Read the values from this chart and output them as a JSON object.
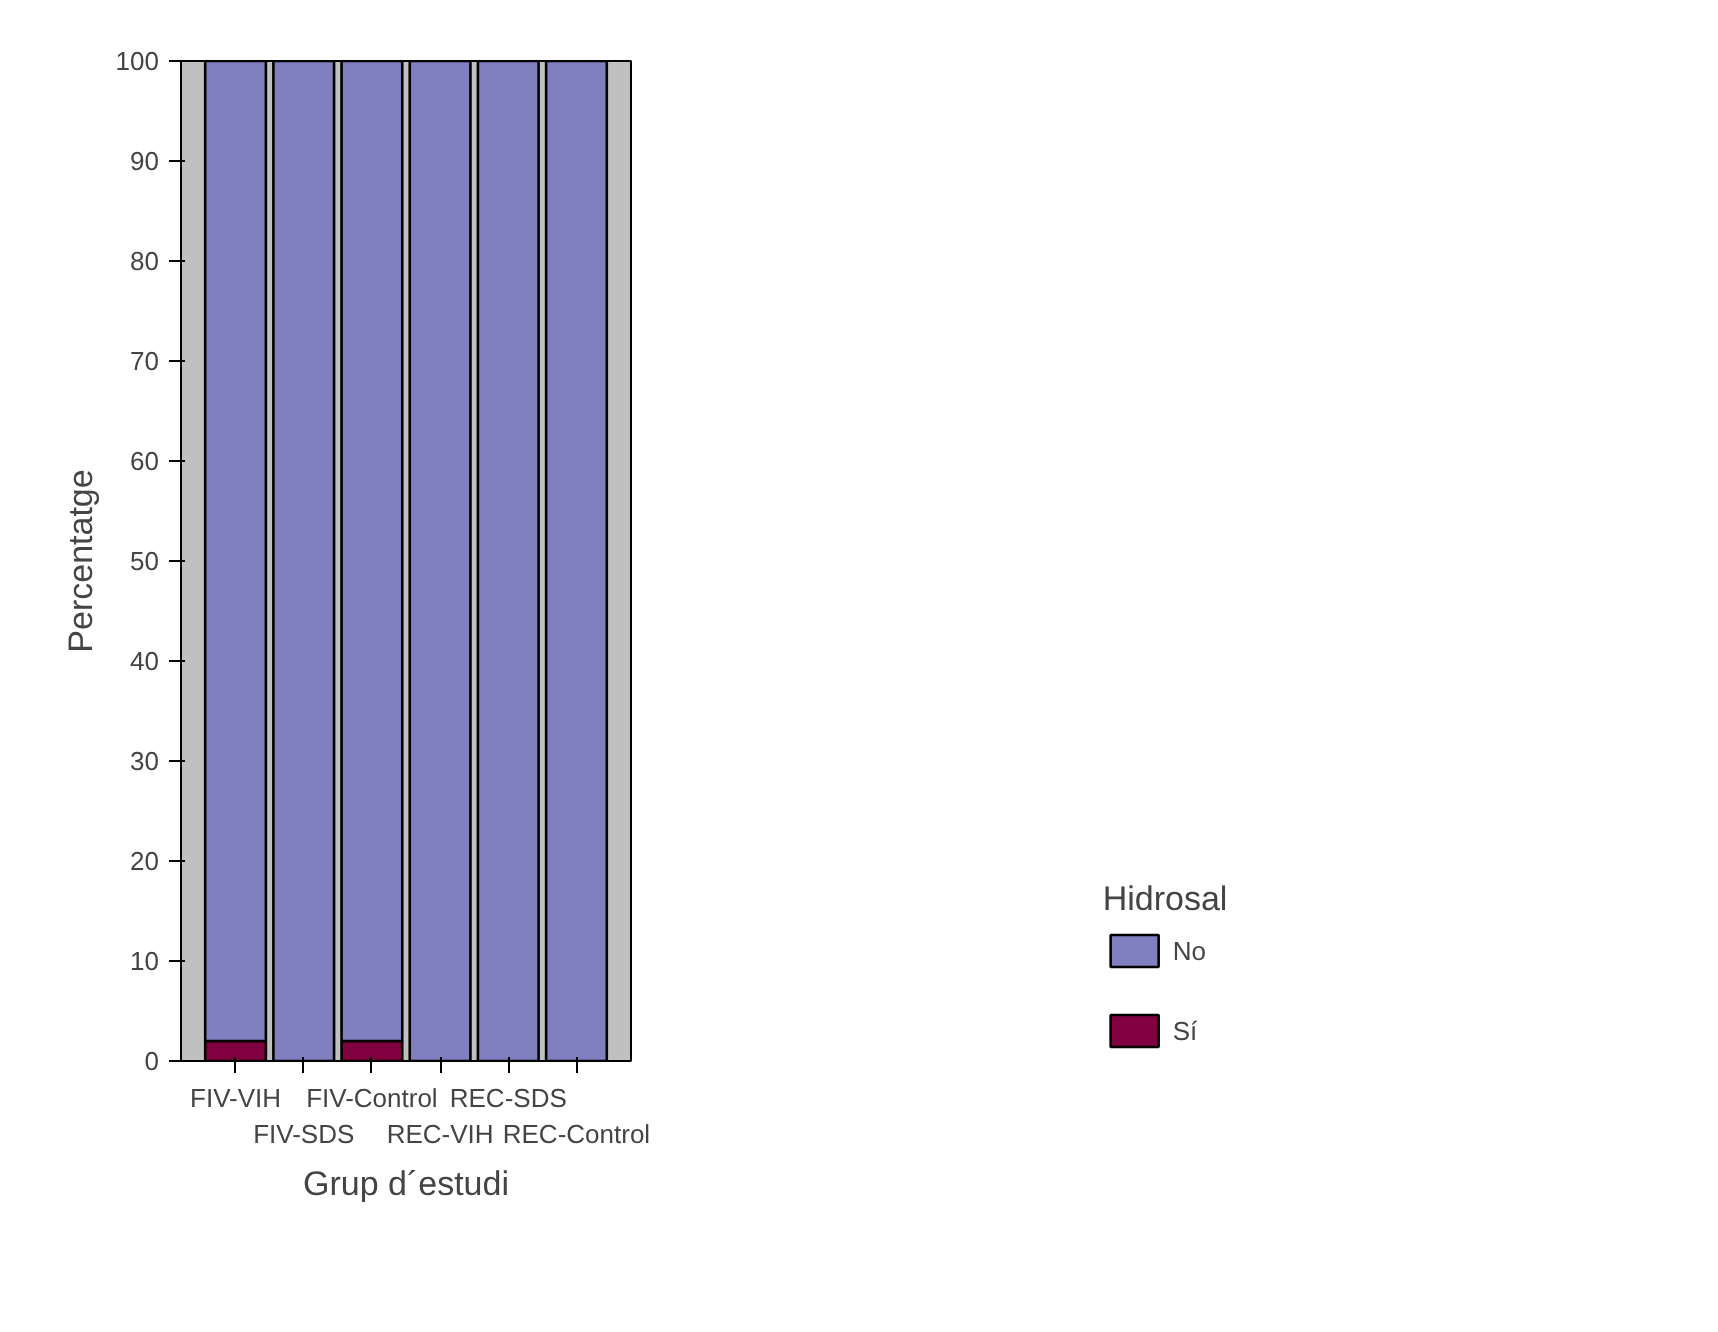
{
  "chart_data": {
    "type": "bar",
    "stacked": true,
    "xlabel": "Grup d´estudi",
    "ylabel": "Percentatge",
    "legend_title": "Hidrosal",
    "legend": "right",
    "categories": [
      "FIV-VIH",
      "FIV-SDS",
      "FIV-Control",
      "REC-VIH",
      "REC-SDS",
      "REC-Control"
    ],
    "series": [
      {
        "name": "Sí",
        "color": "#800040",
        "values": [
          2,
          0,
          2,
          0,
          0,
          0
        ]
      },
      {
        "name": "No",
        "color": "#8080c0",
        "values": [
          98,
          100,
          98,
          100,
          100,
          100
        ]
      }
    ],
    "ylim": [
      0,
      100
    ],
    "yticks": [
      0,
      10,
      20,
      30,
      40,
      50,
      60,
      70,
      80,
      90,
      100
    ],
    "grid": false
  }
}
